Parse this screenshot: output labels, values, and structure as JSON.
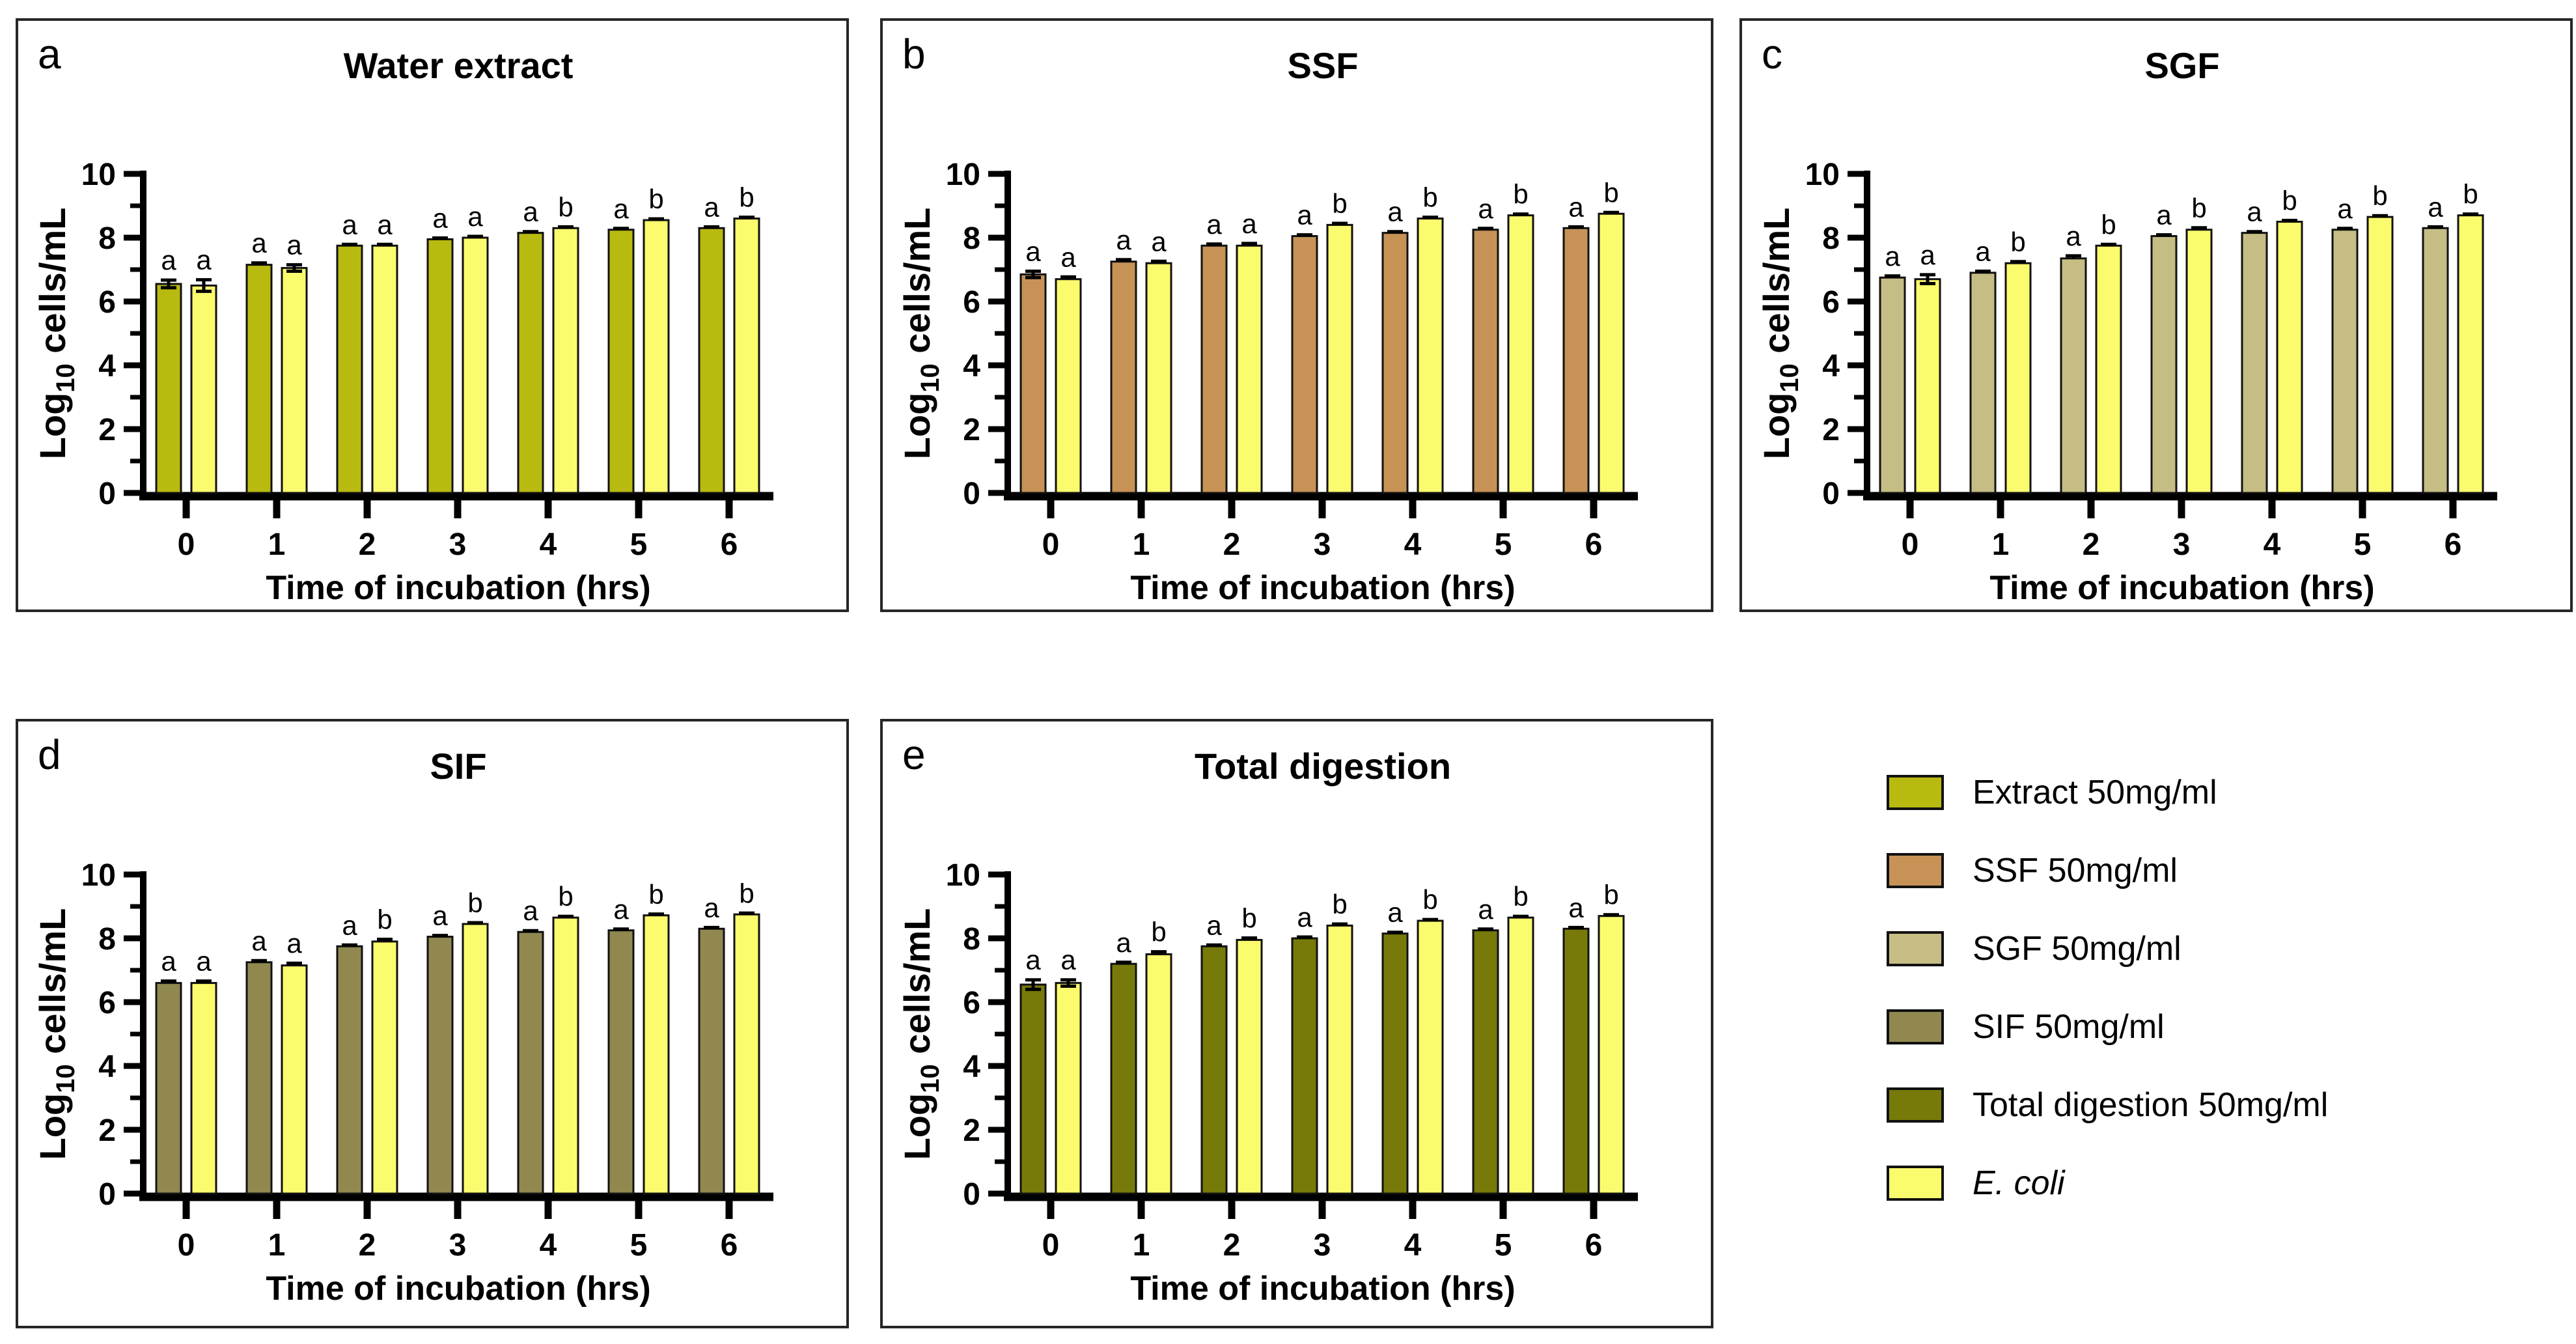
{
  "page": {
    "background": "#ffffff"
  },
  "shared_axis": {
    "xlabel": "Time of incubation (hrs)",
    "ylabel": "Log10 cells/mL",
    "x_tick_labels": [
      "0",
      "1",
      "2",
      "3",
      "4",
      "5",
      "6"
    ],
    "y_tick_labels": [
      "0",
      "2",
      "4",
      "6",
      "8",
      "10"
    ]
  },
  "chart_data": [
    {
      "type": "bar",
      "panel_letter": "a",
      "title": "Water extract",
      "categories": [
        "0",
        "1",
        "2",
        "3",
        "4",
        "5",
        "6"
      ],
      "xlabel": "Time of incubation (hrs)",
      "ylabel": "Log10 cells/mL",
      "ylim": [
        0,
        10
      ],
      "yticks": [
        0,
        2,
        4,
        6,
        8,
        10
      ],
      "y_minor_ticks": [
        1,
        3,
        5,
        7,
        9
      ],
      "grid": false,
      "series": [
        {
          "name": "Extract 50mg/ml",
          "color": "#b9ba10",
          "values": [
            6.55,
            7.15,
            7.75,
            7.95,
            8.15,
            8.25,
            8.3
          ],
          "errors": [
            0.12,
            0.06,
            0.04,
            0.04,
            0.04,
            0.04,
            0.04
          ],
          "sig_letters": [
            "a",
            "a",
            "a",
            "a",
            "a",
            "a",
            "a"
          ]
        },
        {
          "name": "E. coli",
          "color": "#fbfb6e",
          "values": [
            6.5,
            7.05,
            7.75,
            8.0,
            8.3,
            8.55,
            8.6
          ],
          "errors": [
            0.18,
            0.1,
            0.04,
            0.04,
            0.04,
            0.04,
            0.04
          ],
          "sig_letters": [
            "a",
            "a",
            "a",
            "a",
            "b",
            "b",
            "b"
          ]
        }
      ]
    },
    {
      "type": "bar",
      "panel_letter": "b",
      "title": "SSF",
      "categories": [
        "0",
        "1",
        "2",
        "3",
        "4",
        "5",
        "6"
      ],
      "xlabel": "Time of incubation (hrs)",
      "ylabel": "Log10 cells/mL",
      "ylim": [
        0,
        10
      ],
      "yticks": [
        0,
        2,
        4,
        6,
        8,
        10
      ],
      "y_minor_ticks": [
        1,
        3,
        5,
        7,
        9
      ],
      "grid": false,
      "series": [
        {
          "name": "SSF 50mg/ml",
          "color": "#c69256",
          "values": [
            6.85,
            7.25,
            7.75,
            8.05,
            8.15,
            8.25,
            8.3
          ],
          "errors": [
            0.1,
            0.06,
            0.05,
            0.04,
            0.04,
            0.04,
            0.04
          ],
          "sig_letters": [
            "a",
            "a",
            "a",
            "a",
            "a",
            "a",
            "a"
          ]
        },
        {
          "name": "E. coli",
          "color": "#fbfb6e",
          "values": [
            6.7,
            7.2,
            7.75,
            8.4,
            8.6,
            8.7,
            8.75
          ],
          "errors": [
            0.07,
            0.06,
            0.07,
            0.05,
            0.04,
            0.04,
            0.04
          ],
          "sig_letters": [
            "a",
            "a",
            "a",
            "b",
            "b",
            "b",
            "b"
          ]
        }
      ]
    },
    {
      "type": "bar",
      "panel_letter": "c",
      "title": "SGF",
      "categories": [
        "0",
        "1",
        "2",
        "3",
        "4",
        "5",
        "6"
      ],
      "xlabel": "Time of incubation (hrs)",
      "ylabel": "Log10 cells/mL",
      "ylim": [
        0,
        10
      ],
      "yticks": [
        0,
        2,
        4,
        6,
        8,
        10
      ],
      "y_minor_ticks": [
        1,
        3,
        5,
        7,
        9
      ],
      "grid": false,
      "series": [
        {
          "name": "SGF 50mg/ml",
          "color": "#c6bd85",
          "values": [
            6.75,
            6.9,
            7.35,
            8.05,
            8.15,
            8.25,
            8.3
          ],
          "errors": [
            0.05,
            0.05,
            0.08,
            0.04,
            0.04,
            0.04,
            0.04
          ],
          "sig_letters": [
            "a",
            "a",
            "a",
            "a",
            "a",
            "a",
            "a"
          ]
        },
        {
          "name": "E. coli",
          "color": "#fbfb6e",
          "values": [
            6.7,
            7.2,
            7.75,
            8.25,
            8.5,
            8.65,
            8.7
          ],
          "errors": [
            0.14,
            0.05,
            0.04,
            0.06,
            0.04,
            0.04,
            0.04
          ],
          "sig_letters": [
            "a",
            "b",
            "b",
            "b",
            "b",
            "b",
            "b"
          ]
        }
      ]
    },
    {
      "type": "bar",
      "panel_letter": "d",
      "title": "SIF",
      "categories": [
        "0",
        "1",
        "2",
        "3",
        "4",
        "5",
        "6"
      ],
      "xlabel": "Time of incubation (hrs)",
      "ylabel": "Log10 cells/mL",
      "ylim": [
        0,
        10
      ],
      "yticks": [
        0,
        2,
        4,
        6,
        8,
        10
      ],
      "y_minor_ticks": [
        1,
        3,
        5,
        7,
        9
      ],
      "grid": false,
      "series": [
        {
          "name": "SIF 50mg/ml",
          "color": "#90884f",
          "values": [
            6.6,
            7.25,
            7.75,
            8.05,
            8.2,
            8.25,
            8.3
          ],
          "errors": [
            0.06,
            0.05,
            0.04,
            0.04,
            0.04,
            0.04,
            0.04
          ],
          "sig_letters": [
            "a",
            "a",
            "a",
            "a",
            "a",
            "a",
            "a"
          ]
        },
        {
          "name": "E. coli",
          "color": "#fbfb6e",
          "values": [
            6.6,
            7.15,
            7.9,
            8.45,
            8.65,
            8.72,
            8.75
          ],
          "errors": [
            0.06,
            0.07,
            0.07,
            0.04,
            0.04,
            0.04,
            0.04
          ],
          "sig_letters": [
            "a",
            "a",
            "b",
            "b",
            "b",
            "b",
            "b"
          ]
        }
      ]
    },
    {
      "type": "bar",
      "panel_letter": "e",
      "title": "Total digestion",
      "categories": [
        "0",
        "1",
        "2",
        "3",
        "4",
        "5",
        "6"
      ],
      "xlabel": "Time of incubation (hrs)",
      "ylabel": "Log10 cells/mL",
      "ylim": [
        0,
        10
      ],
      "yticks": [
        0,
        2,
        4,
        6,
        8,
        10
      ],
      "y_minor_ticks": [
        1,
        3,
        5,
        7,
        9
      ],
      "grid": false,
      "series": [
        {
          "name": "Total digestion 50mg/ml",
          "color": "#777a08",
          "values": [
            6.55,
            7.2,
            7.75,
            8.0,
            8.15,
            8.25,
            8.3
          ],
          "errors": [
            0.15,
            0.05,
            0.04,
            0.04,
            0.04,
            0.04,
            0.04
          ],
          "sig_letters": [
            "a",
            "a",
            "a",
            "a",
            "a",
            "a",
            "a"
          ]
        },
        {
          "name": "E. coli",
          "color": "#fbfb6e",
          "values": [
            6.6,
            7.5,
            7.95,
            8.4,
            8.55,
            8.65,
            8.7
          ],
          "errors": [
            0.1,
            0.08,
            0.06,
            0.05,
            0.04,
            0.04,
            0.04
          ],
          "sig_letters": [
            "a",
            "b",
            "b",
            "b",
            "b",
            "b",
            "b"
          ]
        }
      ]
    }
  ],
  "legend": {
    "position": "bottom-right",
    "items": [
      {
        "label": "Extract 50mg/ml",
        "color": "#b9ba10",
        "italic": false
      },
      {
        "label": "SSF 50mg/ml",
        "color": "#c69256",
        "italic": false
      },
      {
        "label": "SGF 50mg/ml",
        "color": "#c6bd85",
        "italic": false
      },
      {
        "label": "SIF 50mg/ml",
        "color": "#90884f",
        "italic": false
      },
      {
        "label": "Total digestion 50mg/ml",
        "color": "#777a08",
        "italic": false
      },
      {
        "label": "E. coli",
        "color": "#fbfb6e",
        "italic": true
      }
    ]
  }
}
